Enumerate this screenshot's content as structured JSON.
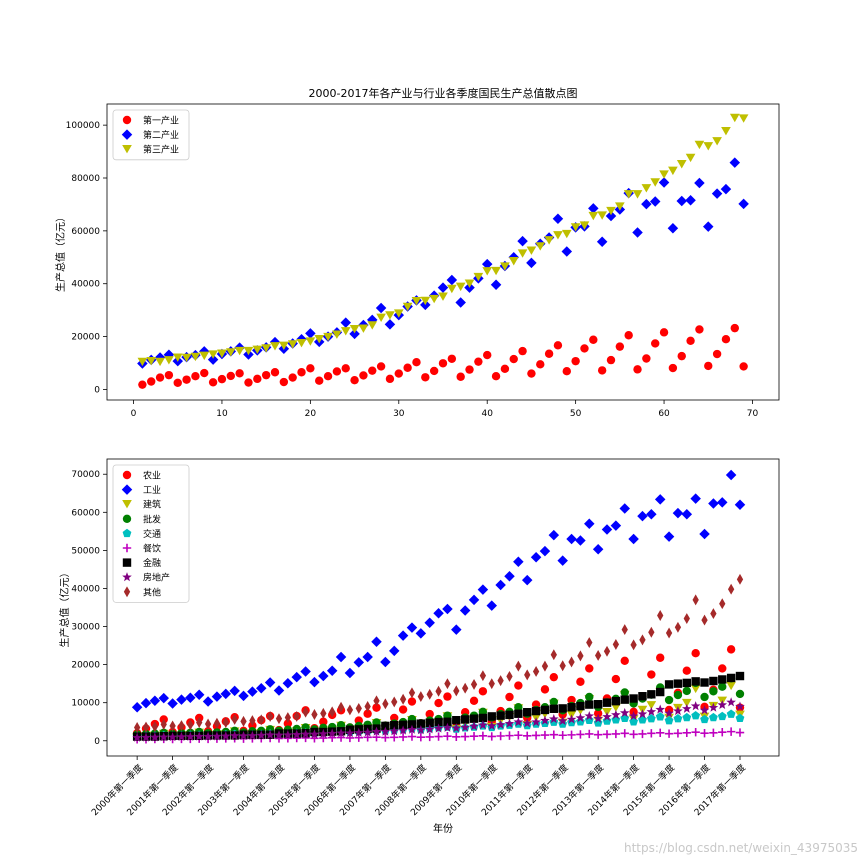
{
  "watermark": "https://blog.csdn.net/weixin_43975035",
  "chart_data": [
    {
      "type": "scatter",
      "title": "2000-2017年各产业与行业各季度国民生产总值散点图",
      "xlabel": "",
      "ylabel": "生产总值（亿元）",
      "xlim": [
        -3,
        73
      ],
      "ylim": [
        -4000,
        108000
      ],
      "x_ticks": [
        0,
        10,
        20,
        30,
        40,
        50,
        60,
        70
      ],
      "y_ticks": [
        0,
        20000,
        40000,
        60000,
        80000,
        100000
      ],
      "grid": false,
      "legend_position": "top-left",
      "series": [
        {
          "name": "第一产业",
          "color": "#ff0000",
          "marker": "circle",
          "values": [
            1800,
            3000,
            4500,
            5400,
            2500,
            3700,
            5000,
            6200,
            2700,
            3900,
            5100,
            6100,
            2600,
            4000,
            5400,
            6500,
            2800,
            4500,
            6500,
            8000,
            3300,
            5000,
            6800,
            8000,
            3500,
            5300,
            7100,
            8700,
            4000,
            6000,
            8200,
            10300,
            4600,
            7000,
            9900,
            11600,
            4800,
            7500,
            10500,
            13000,
            5000,
            7800,
            11500,
            14500,
            6000,
            9500,
            13500,
            16700,
            6900,
            10700,
            15500,
            18800,
            7200,
            11100,
            16200,
            20500,
            7600,
            11700,
            17400,
            21600,
            8100,
            12600,
            18400,
            22700,
            8900,
            13400,
            19000,
            23200,
            8700
          ]
        },
        {
          "name": "第二产业",
          "color": "#0000ff",
          "marker": "diamond",
          "values": [
            9800,
            11200,
            12100,
            13100,
            10700,
            12200,
            13000,
            14400,
            11300,
            13400,
            14400,
            15800,
            13200,
            14800,
            15900,
            17900,
            15400,
            17400,
            19000,
            21200,
            18000,
            20000,
            21600,
            25300,
            21000,
            24400,
            26300,
            30800,
            24600,
            28100,
            31400,
            33700,
            32000,
            35500,
            38500,
            41400,
            32900,
            38500,
            42000,
            47400,
            39600,
            46700,
            50000,
            56100,
            47900,
            55100,
            57500,
            64600,
            52200,
            61300,
            61700,
            68500,
            55900,
            65600,
            68100,
            74300,
            59400,
            70100,
            71100,
            78300,
            61000,
            71300,
            71600,
            78100,
            61600,
            74100,
            75800,
            85800,
            70200
          ]
        },
        {
          "name": "第三产业",
          "color": "#bfbf00",
          "marker": "triangle-down",
          "values": [
            10400,
            10700,
            10400,
            11000,
            12000,
            11900,
            12300,
            12700,
            13200,
            13500,
            14000,
            14500,
            14500,
            15000,
            15500,
            16300,
            16500,
            17000,
            17500,
            18100,
            19000,
            19800,
            20700,
            22000,
            22800,
            23000,
            24200,
            27100,
            28000,
            28700,
            31200,
            33400,
            33500,
            34200,
            35100,
            38000,
            38800,
            40000,
            42500,
            44700,
            44800,
            46500,
            48500,
            51400,
            52500,
            54100,
            56400,
            58300,
            58800,
            61300,
            62000,
            65600,
            65800,
            67500,
            69200,
            73800,
            73800,
            76100,
            78300,
            81300,
            82700,
            85200,
            87600,
            92500,
            92000,
            93900,
            97700,
            102700,
            102500
          ]
        }
      ]
    },
    {
      "type": "scatter",
      "title": "",
      "xlabel": "年份",
      "ylabel": "生产总值（亿元）",
      "ylim": [
        -4000,
        74000
      ],
      "y_ticks": [
        0,
        10000,
        20000,
        30000,
        40000,
        50000,
        60000,
        70000
      ],
      "x_tick_labels": [
        "2000年第一季度",
        "2001年第一季度",
        "2002年第一季度",
        "2003年第一季度",
        "2004年第一季度",
        "2005年第一季度",
        "2006年第一季度",
        "2007年第一季度",
        "2008年第一季度",
        "2009年第一季度",
        "2010年第一季度",
        "2011年第一季度",
        "2012年第一季度",
        "2013年第一季度",
        "2014年第一季度",
        "2015年第一季度",
        "2016年第一季度",
        "2017年第一季度"
      ],
      "grid": false,
      "legend_position": "top-left",
      "series": [
        {
          "name": "农业",
          "color": "#ff0000",
          "marker": "circle",
          "values": [
            2000,
            3200,
            4400,
            5600,
            2300,
            3500,
            4800,
            6000,
            2500,
            3800,
            5100,
            6200,
            2600,
            4000,
            5400,
            6500,
            2800,
            4500,
            6500,
            8000,
            3300,
            5000,
            6800,
            8000,
            3500,
            5300,
            7100,
            8700,
            4000,
            6000,
            8200,
            10300,
            4600,
            7000,
            9900,
            11600,
            4800,
            7500,
            10500,
            13000,
            5000,
            7800,
            11500,
            14500,
            6000,
            9500,
            13500,
            16700,
            6900,
            10700,
            15500,
            19000,
            7200,
            11100,
            16200,
            21000,
            7600,
            11700,
            17400,
            21800,
            8100,
            12600,
            18400,
            23000,
            8900,
            13400,
            19000,
            24000,
            8700
          ]
        },
        {
          "name": "工业",
          "color": "#0000ff",
          "marker": "diamond",
          "values": [
            8800,
            9900,
            10500,
            11200,
            9800,
            10800,
            11300,
            12100,
            10300,
            11600,
            12300,
            13100,
            11800,
            12900,
            13800,
            15300,
            13200,
            15100,
            16700,
            18200,
            15400,
            17000,
            18400,
            22000,
            17800,
            20600,
            22000,
            26000,
            20700,
            23600,
            27600,
            29700,
            28200,
            31000,
            33500,
            34600,
            29200,
            34200,
            37000,
            39700,
            35500,
            40900,
            43200,
            47000,
            42200,
            48200,
            49800,
            54000,
            47300,
            53000,
            52600,
            57000,
            50300,
            55500,
            56500,
            61000,
            53000,
            59000,
            59500,
            63400,
            53600,
            59800,
            59500,
            63600,
            54300,
            62300,
            62600,
            69800,
            62000
          ]
        },
        {
          "name": "建筑",
          "color": "#bfbf00",
          "marker": "triangle-down",
          "values": [
            800,
            1100,
            1300,
            1800,
            900,
            1300,
            1500,
            2100,
            1000,
            1500,
            1700,
            2400,
            1100,
            1700,
            2000,
            2800,
            1300,
            2000,
            2400,
            3300,
            1500,
            2300,
            2800,
            3900,
            1800,
            2800,
            3300,
            4600,
            2200,
            3300,
            3900,
            5400,
            2600,
            3900,
            4600,
            6400,
            3000,
            4500,
            5300,
            7300,
            3600,
            5300,
            6200,
            8500,
            4100,
            6000,
            7000,
            9700,
            4700,
            6800,
            7900,
            10900,
            5200,
            7500,
            8700,
            12000,
            5600,
            8100,
            9300,
            12800,
            6000,
            8600,
            9900,
            13600,
            6300,
            9100,
            10500,
            14400,
            6800
          ]
        },
        {
          "name": "批发",
          "color": "#008000",
          "marker": "circle",
          "values": [
            1700,
            1800,
            1900,
            2100,
            1800,
            2000,
            2100,
            2300,
            2000,
            2200,
            2300,
            2600,
            2200,
            2500,
            2600,
            3000,
            2600,
            2900,
            3100,
            3500,
            3000,
            3400,
            3600,
            4100,
            3500,
            3900,
            4200,
            4800,
            4000,
            4500,
            4900,
            5700,
            4600,
            5300,
            5700,
            6600,
            5300,
            6100,
            6600,
            7600,
            6100,
            7000,
            7600,
            8800,
            7100,
            8100,
            8800,
            10200,
            8000,
            9100,
            9900,
            11500,
            8900,
            10100,
            11000,
            12700,
            9800,
            11100,
            12100,
            14000,
            10700,
            12000,
            13100,
            15200,
            11500,
            13000,
            14200,
            16400,
            12300
          ]
        },
        {
          "name": "交通",
          "color": "#00bfbf",
          "marker": "pentagon",
          "values": [
            1200,
            1300,
            1300,
            1400,
            1300,
            1400,
            1500,
            1500,
            1400,
            1500,
            1600,
            1700,
            1500,
            1600,
            1700,
            1800,
            1700,
            1900,
            2000,
            2100,
            2000,
            2200,
            2300,
            2400,
            2300,
            2500,
            2600,
            2800,
            2600,
            2800,
            3000,
            3200,
            2900,
            3200,
            3400,
            3600,
            3100,
            3400,
            3600,
            3900,
            3500,
            3900,
            4100,
            4400,
            4000,
            4400,
            4600,
            4900,
            4400,
            4800,
            5000,
            5400,
            4700,
            5200,
            5500,
            5900,
            5000,
            5500,
            5800,
            6300,
            5300,
            5800,
            6100,
            6600,
            5600,
            6100,
            6400,
            7000,
            5900
          ]
        },
        {
          "name": "餐饮",
          "color": "#bf00bf",
          "marker": "plus",
          "values": [
            400,
            400,
            450,
            500,
            450,
            500,
            500,
            550,
            500,
            550,
            600,
            650,
            550,
            600,
            650,
            700,
            600,
            650,
            700,
            750,
            650,
            700,
            800,
            850,
            750,
            800,
            900,
            950,
            850,
            900,
            1000,
            1100,
            950,
            1000,
            1100,
            1200,
            1050,
            1100,
            1200,
            1300,
            1150,
            1250,
            1350,
            1450,
            1300,
            1400,
            1500,
            1600,
            1450,
            1550,
            1650,
            1800,
            1600,
            1700,
            1800,
            1950,
            1700,
            1800,
            1950,
            2100,
            1850,
            1950,
            2100,
            2250,
            2000,
            2100,
            2250,
            2400,
            2150
          ]
        },
        {
          "name": "金融",
          "color": "#000000",
          "marker": "square",
          "values": [
            1100,
            1100,
            1100,
            1200,
            1300,
            1300,
            1300,
            1300,
            1400,
            1400,
            1400,
            1400,
            1600,
            1600,
            1600,
            1600,
            1900,
            1900,
            1900,
            2000,
            2300,
            2300,
            2400,
            2500,
            2900,
            3000,
            3100,
            3200,
            3900,
            4100,
            4200,
            4300,
            4500,
            4700,
            4900,
            5000,
            5400,
            5600,
            5800,
            6000,
            6400,
            6600,
            6800,
            7100,
            7500,
            7800,
            8100,
            8400,
            8500,
            8800,
            9100,
            9500,
            9600,
            10000,
            10400,
            10800,
            11100,
            11700,
            12200,
            12800,
            14800,
            15000,
            15200,
            15600,
            15300,
            15700,
            16100,
            16500,
            17000
          ]
        },
        {
          "name": "房地产",
          "color": "#800080",
          "marker": "star",
          "values": [
            800,
            850,
            900,
            950,
            950,
            1000,
            1050,
            1100,
            1100,
            1150,
            1200,
            1300,
            1250,
            1300,
            1400,
            1500,
            1450,
            1500,
            1600,
            1700,
            1700,
            1800,
            1900,
            2000,
            2000,
            2100,
            2200,
            2400,
            2400,
            2500,
            2700,
            2900,
            2800,
            3000,
            3200,
            3400,
            3300,
            3500,
            3800,
            4100,
            3900,
            4200,
            4500,
            4900,
            4600,
            4900,
            5300,
            5700,
            5200,
            5600,
            6000,
            6500,
            5800,
            6300,
            6800,
            7300,
            6500,
            7000,
            7600,
            8200,
            7200,
            7800,
            8400,
            9100,
            8000,
            8700,
            9400,
            10100,
            9000
          ]
        },
        {
          "name": "其他",
          "color": "#a52a2a",
          "marker": "thin-diamond",
          "values": [
            3500,
            3600,
            3700,
            4300,
            3900,
            4000,
            4200,
            4800,
            4400,
            4600,
            4800,
            5600,
            5100,
            5300,
            5500,
            6400,
            5800,
            6100,
            6400,
            7500,
            6900,
            7200,
            7600,
            8800,
            8100,
            8500,
            9000,
            10500,
            9700,
            10200,
            10900,
            12600,
            11600,
            12200,
            13000,
            15000,
            13100,
            13800,
            14800,
            17100,
            15000,
            15800,
            16900,
            19600,
            17300,
            18200,
            19600,
            22600,
            19700,
            20700,
            22300,
            25800,
            22400,
            23500,
            25300,
            29200,
            25200,
            26500,
            28500,
            32900,
            28300,
            29800,
            32100,
            37000,
            31700,
            33400,
            36000,
            39800,
            42400
          ]
        }
      ]
    }
  ]
}
